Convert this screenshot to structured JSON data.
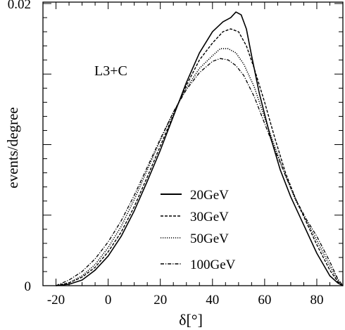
{
  "chart_data": {
    "type": "line",
    "title": "",
    "annotation": "L3+C",
    "xlabel": "δ[°]",
    "ylabel": "events/degree",
    "xlim": [
      -25,
      90
    ],
    "ylim": [
      0,
      0.0201
    ],
    "x_ticks": [
      -20,
      0,
      20,
      40,
      60,
      80
    ],
    "x_tick_labels": [
      "-20",
      "0",
      "20",
      "40",
      "60",
      "80"
    ],
    "y_ticks": [
      0,
      0.02
    ],
    "y_tick_labels": [
      "0",
      "0.02"
    ],
    "legend_position": "lower-center",
    "grid": false,
    "series": [
      {
        "name": "20GeV",
        "style": "solid",
        "x": [
          -20,
          -15,
          -10,
          -5,
          0,
          5,
          10,
          15,
          20,
          25,
          30,
          35,
          40,
          44,
          47,
          49,
          51,
          53,
          55,
          58,
          62,
          66,
          70,
          75,
          80,
          85,
          88,
          90
        ],
        "y": [
          0.0,
          0.0001,
          0.0004,
          0.0011,
          0.0021,
          0.0035,
          0.0053,
          0.0074,
          0.0096,
          0.012,
          0.0144,
          0.0165,
          0.018,
          0.0187,
          0.019,
          0.0194,
          0.0192,
          0.0182,
          0.0163,
          0.0136,
          0.0107,
          0.0082,
          0.0063,
          0.0043,
          0.0023,
          0.0007,
          0.0002,
          0.0
        ]
      },
      {
        "name": "30GeV",
        "style": "dashed",
        "x": [
          -20,
          -15,
          -10,
          -5,
          0,
          5,
          10,
          15,
          20,
          25,
          30,
          35,
          40,
          44,
          47,
          50,
          53,
          56,
          60,
          64,
          68,
          72,
          76,
          80,
          85,
          88,
          90
        ],
        "y": [
          0.0,
          0.0002,
          0.0006,
          0.0013,
          0.0024,
          0.0038,
          0.0056,
          0.0077,
          0.0099,
          0.0121,
          0.0142,
          0.016,
          0.0172,
          0.018,
          0.0182,
          0.018,
          0.017,
          0.0154,
          0.013,
          0.0104,
          0.008,
          0.0061,
          0.0045,
          0.0029,
          0.0011,
          0.0003,
          0.0
        ]
      },
      {
        "name": "50GeV",
        "style": "dotted",
        "x": [
          -20,
          -15,
          -10,
          -5,
          0,
          5,
          10,
          15,
          20,
          25,
          30,
          35,
          40,
          43,
          46,
          49,
          52,
          56,
          60,
          64,
          68,
          72,
          76,
          80,
          85,
          88,
          90
        ],
        "y": [
          0.0,
          0.0002,
          0.0007,
          0.0015,
          0.0027,
          0.0042,
          0.0061,
          0.0082,
          0.0103,
          0.0123,
          0.014,
          0.0154,
          0.0163,
          0.0168,
          0.0168,
          0.0165,
          0.0157,
          0.0141,
          0.0119,
          0.0098,
          0.0078,
          0.006,
          0.0046,
          0.0032,
          0.0014,
          0.0004,
          0.0
        ]
      },
      {
        "name": "100GeV",
        "style": "dashdot",
        "x": [
          -20,
          -15,
          -10,
          -5,
          0,
          5,
          10,
          15,
          20,
          25,
          30,
          35,
          40,
          43,
          46,
          49,
          52,
          56,
          60,
          64,
          68,
          72,
          76,
          80,
          85,
          88,
          90
        ],
        "y": [
          0.0,
          0.0004,
          0.001,
          0.0019,
          0.0031,
          0.0046,
          0.0064,
          0.0084,
          0.0104,
          0.0123,
          0.0139,
          0.0151,
          0.0159,
          0.0161,
          0.016,
          0.0156,
          0.0149,
          0.0134,
          0.0115,
          0.0096,
          0.0078,
          0.0061,
          0.0047,
          0.0035,
          0.0017,
          0.0005,
          0.0
        ]
      }
    ]
  }
}
